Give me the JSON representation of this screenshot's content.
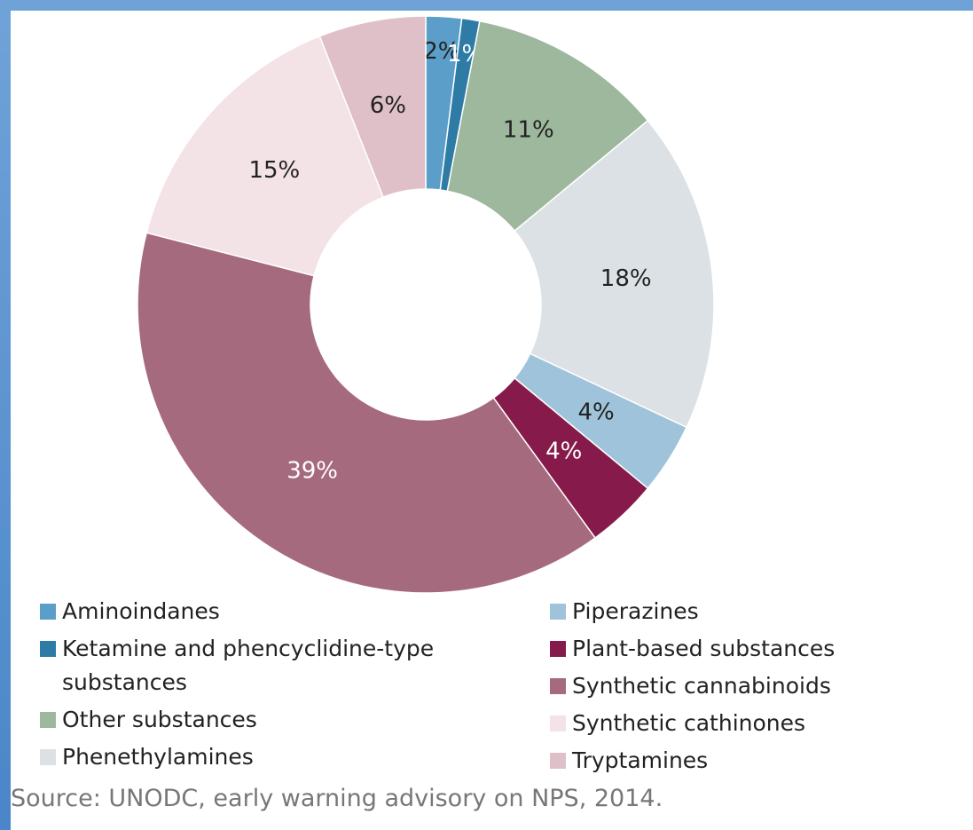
{
  "chart_data": {
    "type": "pie",
    "categories": [
      "Aminoindanes",
      "Ketamine and phencyclidine-type substances",
      "Other substances",
      "Phenethylamines",
      "Piperazines",
      "Plant-based substances",
      "Synthetic cannabinoids",
      "Synthetic cathinones",
      "Tryptamines"
    ],
    "values": [
      2,
      1,
      11,
      18,
      4,
      4,
      39,
      15,
      6
    ],
    "value_labels": [
      "2%",
      "1%",
      "11%",
      "18%",
      "4%",
      "4%",
      "39%",
      "15%",
      "6%"
    ],
    "colors": [
      "#5b9ec9",
      "#2e7ba6",
      "#9db89c",
      "#dce1e5",
      "#9ec3da",
      "#861a4a",
      "#a66a7e",
      "#f3e2e6",
      "#dfc0c8"
    ],
    "donut": true,
    "source": "Source: UNODC, early warning advisory on NPS, 2014."
  }
}
